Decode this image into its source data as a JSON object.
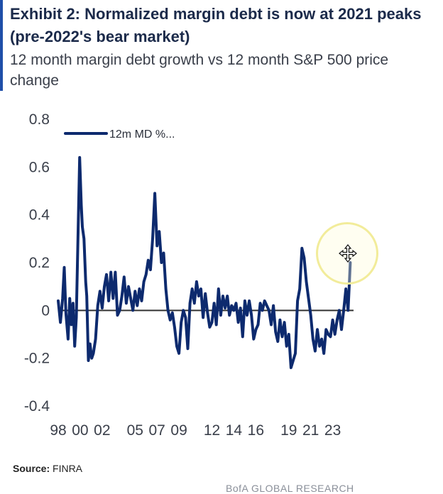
{
  "header": {
    "title": "Exhibit 2: Normalized margin debt is now at 2021 peaks (pre-2022's bear market)",
    "subtitle": "12 month margin debt growth vs 12 month S&P 500 price change"
  },
  "footer": {
    "source_label": "Source:",
    "source_value": "FINRA",
    "brand": "BofA GLOBAL RESEARCH"
  },
  "colors": {
    "series": "#0d2a6e",
    "zero_line": "#333333",
    "text": "#3a3f4a"
  },
  "chart_data": {
    "type": "line",
    "title": "Exhibit 2: Normalized margin debt is now at 2021 peaks (pre-2022's bear market)",
    "subtitle": "12 month margin debt growth vs 12 month S&P 500 price change",
    "xlabel": "",
    "ylabel": "",
    "ylim": [
      -0.4,
      0.8
    ],
    "xlim": [
      1998,
      2024.9
    ],
    "grid": false,
    "legend_position": "top-left",
    "y_ticks": [
      "0.8",
      "0.6",
      "0.4",
      "0.2",
      "0",
      "-0.2",
      "-0.4"
    ],
    "y_tick_values": [
      0.8,
      0.6,
      0.4,
      0.2,
      0,
      -0.2,
      -0.4
    ],
    "x_ticks": [
      "98",
      "00",
      "02",
      "05",
      "07",
      "09",
      "12",
      "14",
      "16",
      "19",
      "21",
      "23"
    ],
    "x_tick_values": [
      1998,
      2000,
      2002,
      2005,
      2007,
      2009,
      2012,
      2014,
      2016,
      2019,
      2021,
      2023
    ],
    "series": [
      {
        "name": "12m MD %...",
        "x": [
          1998.0,
          1998.2,
          1998.4,
          1998.55,
          1998.7,
          1998.9,
          1999.05,
          1999.2,
          1999.35,
          1999.5,
          1999.65,
          1999.8,
          1999.95,
          2000.1,
          2000.2,
          2000.35,
          2000.5,
          2000.6,
          2000.75,
          2000.9,
          2001.05,
          2001.2,
          2001.4,
          2001.6,
          2001.8,
          2002.0,
          2002.2,
          2002.4,
          2002.6,
          2002.8,
          2003.0,
          2003.2,
          2003.4,
          2003.6,
          2003.8,
          2004.0,
          2004.2,
          2004.4,
          2004.6,
          2004.8,
          2005.0,
          2005.2,
          2005.4,
          2005.6,
          2005.8,
          2006.0,
          2006.2,
          2006.4,
          2006.6,
          2006.8,
          2007.0,
          2007.2,
          2007.4,
          2007.6,
          2007.8,
          2008.0,
          2008.2,
          2008.4,
          2008.6,
          2008.8,
          2009.0,
          2009.2,
          2009.4,
          2009.6,
          2009.8,
          2010.0,
          2010.2,
          2010.4,
          2010.6,
          2010.8,
          2011.0,
          2011.2,
          2011.4,
          2011.6,
          2011.8,
          2012.0,
          2012.2,
          2012.4,
          2012.6,
          2012.8,
          2013.0,
          2013.2,
          2013.4,
          2013.6,
          2013.8,
          2014.0,
          2014.2,
          2014.4,
          2014.6,
          2014.8,
          2015.0,
          2015.2,
          2015.4,
          2015.6,
          2015.8,
          2016.0,
          2016.2,
          2016.4,
          2016.6,
          2016.8,
          2017.0,
          2017.2,
          2017.4,
          2017.6,
          2017.8,
          2018.0,
          2018.2,
          2018.4,
          2018.6,
          2018.8,
          2019.0,
          2019.2,
          2019.4,
          2019.6,
          2019.8,
          2020.0,
          2020.2,
          2020.4,
          2020.6,
          2020.8,
          2021.0,
          2021.2,
          2021.4,
          2021.6,
          2021.8,
          2022.0,
          2022.2,
          2022.4,
          2022.6,
          2022.8,
          2023.0,
          2023.2,
          2023.4,
          2023.6,
          2023.8,
          2024.0,
          2024.2,
          2024.4,
          2024.6
        ],
        "values": [
          0.04,
          -0.05,
          0.05,
          0.18,
          -0.01,
          -0.12,
          0.05,
          -0.06,
          0.03,
          -0.15,
          -0.03,
          0.3,
          0.64,
          0.44,
          0.35,
          0.3,
          0.12,
          0.06,
          -0.21,
          -0.14,
          -0.2,
          -0.18,
          -0.12,
          0.02,
          0.08,
          0.01,
          0.1,
          0.15,
          0.04,
          0.16,
          0.05,
          0.16,
          -0.02,
          0.0,
          0.06,
          0.14,
          0.03,
          0.1,
          0.05,
          0.0,
          0.08,
          0.02,
          0.09,
          0.04,
          0.12,
          0.15,
          0.21,
          0.17,
          0.3,
          0.49,
          0.27,
          0.33,
          0.2,
          0.24,
          0.09,
          0.0,
          -0.04,
          -0.01,
          -0.07,
          -0.15,
          -0.18,
          -0.05,
          0.0,
          -0.03,
          -0.16,
          0.03,
          0.09,
          0.03,
          0.12,
          0.06,
          0.09,
          -0.03,
          0.07,
          -0.01,
          -0.07,
          -0.05,
          0.03,
          -0.06,
          0.09,
          -0.02,
          0.06,
          0.01,
          0.06,
          -0.02,
          0.02,
          0.0,
          0.03,
          -0.05,
          0.01,
          -0.11,
          0.04,
          -0.02,
          0.04,
          -0.02,
          -0.12,
          -0.08,
          -0.06,
          0.03,
          0.0,
          0.04,
          0.02,
          0.0,
          -0.06,
          0.02,
          -0.09,
          -0.13,
          -0.04,
          -0.11,
          -0.05,
          -0.15,
          -0.1,
          -0.24,
          -0.21,
          -0.18,
          0.04,
          0.09,
          0.26,
          0.22,
          0.12,
          0.05,
          -0.02,
          -0.12,
          -0.17,
          -0.08,
          -0.15,
          -0.12,
          -0.18,
          -0.08,
          -0.1,
          -0.11,
          -0.04,
          -0.1,
          -0.04,
          0.0,
          -0.08,
          0.0,
          0.09,
          0.0,
          0.2
        ]
      }
    ]
  },
  "cursor": {
    "icon": "move-cursor-icon"
  }
}
